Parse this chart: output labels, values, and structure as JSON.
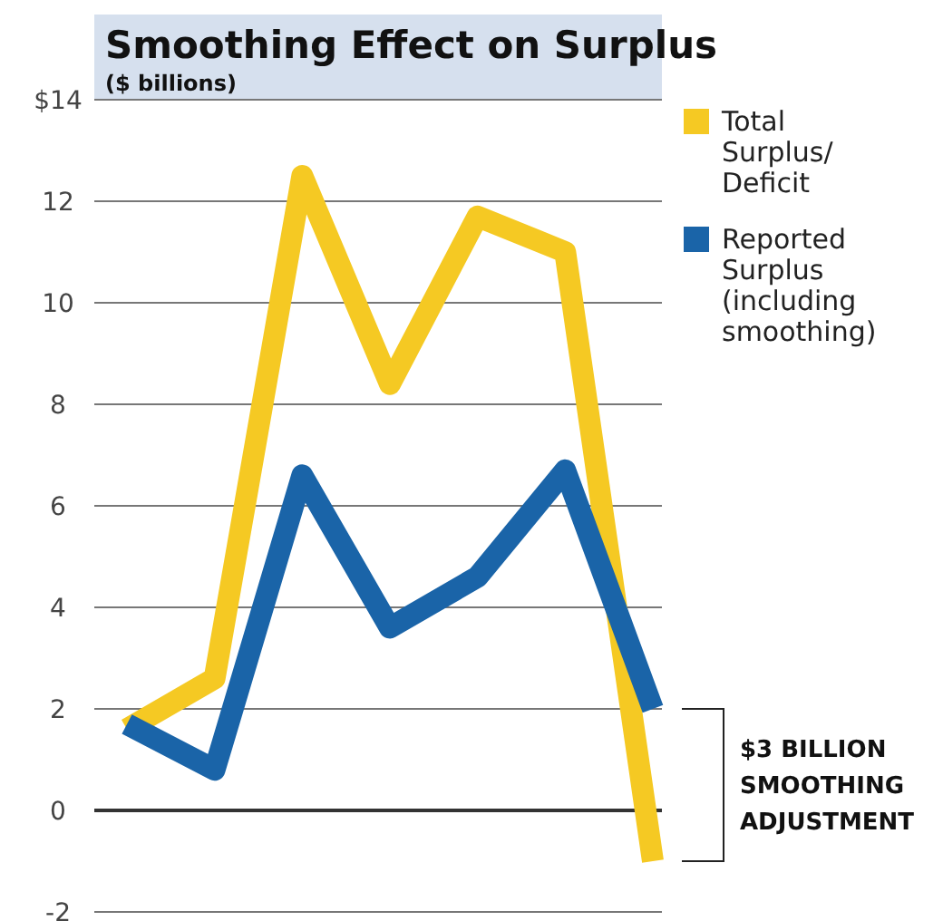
{
  "chart_data": {
    "type": "line",
    "title": "Smoothing Effect on Surplus",
    "subtitle": "($ billions)",
    "categories": [
      null,
      null,
      null,
      null,
      null,
      null,
      null
    ],
    "series": [
      {
        "name": "Total Surplus/ Deficit",
        "color": "#f5c923",
        "values": [
          1.6,
          2.6,
          12.5,
          8.4,
          11.7,
          11.0,
          -1.0
        ]
      },
      {
        "name": "Reported Surplus (including smoothing)",
        "color": "#1a64a8",
        "values": [
          1.7,
          0.8,
          6.6,
          3.6,
          4.6,
          6.7,
          2.0
        ]
      }
    ],
    "ylim": [
      -2,
      14
    ],
    "yticks": [
      {
        "value": -2,
        "label": "-2"
      },
      {
        "value": 0,
        "label": "0"
      },
      {
        "value": 2,
        "label": "2"
      },
      {
        "value": 4,
        "label": "4"
      },
      {
        "value": 6,
        "label": "6"
      },
      {
        "value": 8,
        "label": "8"
      },
      {
        "value": 10,
        "label": "10"
      },
      {
        "value": 12,
        "label": "12"
      },
      {
        "value": 14,
        "label": "$14"
      }
    ],
    "grid": "y",
    "legend": "top right",
    "line_style": "solid",
    "marker": "none",
    "annotations": [
      "$3 BILLION SMOOTHING ADJUSTMENT"
    ]
  }
}
